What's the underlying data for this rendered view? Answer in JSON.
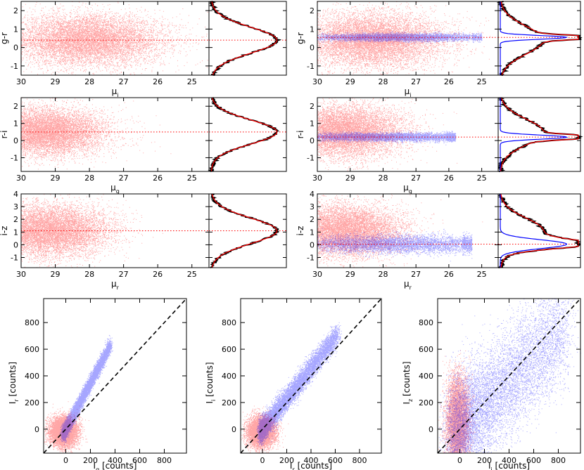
{
  "colors": {
    "field": "#ff0000",
    "cluster": "#0000ff",
    "frame": "#000000",
    "reference": "#000000"
  },
  "figure": {
    "type": "multi-panel scatter plots with histograms",
    "rows": [
      {
        "ylabel": "g-r",
        "yticks": [
          "-1",
          "0",
          "1",
          "2"
        ],
        "xlabel_base": "μ",
        "xlabel_sub": "i",
        "xticks": [
          "30",
          "29",
          "28",
          "27",
          "26",
          "25"
        ]
      },
      {
        "ylabel": "r-i",
        "yticks": [
          "-1",
          "0",
          "1",
          "2"
        ],
        "xlabel_base": "μ",
        "xlabel_sub": "g",
        "xticks": [
          "30",
          "29",
          "28",
          "27",
          "26",
          "25"
        ]
      },
      {
        "ylabel": "i-z",
        "yticks": [
          "-1",
          "0",
          "1",
          "2",
          "3",
          "4"
        ],
        "xlabel_base": "μ",
        "xlabel_sub": "r",
        "xticks": [
          "30",
          "29",
          "28",
          "27",
          "26",
          "25"
        ]
      }
    ],
    "bottom": [
      {
        "xlabel_base": "I",
        "xlabel_sub": "g",
        "xlabel_unit": " [counts]",
        "ylabel_base": "I",
        "ylabel_sub": "r",
        "ylabel_unit": " [counts]"
      },
      {
        "xlabel_base": "I",
        "xlabel_sub": "r",
        "xlabel_unit": " [counts]",
        "ylabel_base": "I",
        "ylabel_sub": "i",
        "ylabel_unit": " [counts]"
      },
      {
        "xlabel_base": "I",
        "xlabel_sub": "i",
        "xlabel_unit": " [counts]",
        "ylabel_base": "I",
        "ylabel_sub": "z",
        "ylabel_unit": " [counts]"
      }
    ],
    "bottom_xticks": [
      "0",
      "200",
      "400",
      "600",
      "800"
    ],
    "bottom_yticks": [
      "0",
      "200",
      "400",
      "600",
      "800"
    ]
  },
  "chart_data": [
    {
      "type": "scatter",
      "panel": "g-r vs μi (field)",
      "xlim": [
        30,
        24.5
      ],
      "ylim": [
        -1.5,
        2.5
      ],
      "reference_y": 0.4,
      "series": [
        {
          "color": "#ff0000",
          "center": [
            28.1,
            0.4
          ],
          "spread": [
            1.1,
            0.7
          ]
        }
      ]
    },
    {
      "type": "scatter",
      "panel": "g-r vs μi (field + cluster)",
      "xlim": [
        30,
        24.5
      ],
      "ylim": [
        -1.5,
        2.5
      ],
      "reference_y": 0.55,
      "series": [
        {
          "color": "#ff0000",
          "center": [
            28.3,
            0.4
          ],
          "spread": [
            1.1,
            0.75
          ]
        },
        {
          "color": "#0000ff",
          "center": [
            27.5,
            0.55
          ],
          "spread": [
            1.3,
            0.1
          ],
          "x_max": 25.0
        }
      ]
    },
    {
      "type": "scatter",
      "panel": "r-i vs μg (field)",
      "xlim": [
        30,
        24.5
      ],
      "ylim": [
        -1.8,
        2.5
      ],
      "reference_y": 0.5,
      "series": [
        {
          "color": "#ff0000",
          "center": [
            29.3,
            0.5
          ],
          "spread": [
            0.9,
            0.7
          ]
        }
      ]
    },
    {
      "type": "scatter",
      "panel": "r-i vs μg (field + cluster)",
      "xlim": [
        30,
        24.5
      ],
      "ylim": [
        -1.8,
        2.5
      ],
      "reference_y": 0.2,
      "series": [
        {
          "color": "#ff0000",
          "center": [
            29.2,
            0.5
          ],
          "spread": [
            0.9,
            0.75
          ]
        },
        {
          "color": "#0000ff",
          "center": [
            27.8,
            0.2
          ],
          "spread": [
            1.5,
            0.12
          ],
          "x_max": 25.8
        }
      ]
    },
    {
      "type": "scatter",
      "panel": "i-z vs μr (field)",
      "xlim": [
        30,
        24.5
      ],
      "ylim": [
        -1.8,
        4
      ],
      "reference_y": 1.1,
      "series": [
        {
          "color": "#ff0000",
          "center": [
            29.2,
            1.1
          ],
          "spread": [
            0.9,
            1.0
          ]
        }
      ]
    },
    {
      "type": "scatter",
      "panel": "i-z vs μr (field + cluster)",
      "xlim": [
        30,
        24.5
      ],
      "ylim": [
        -1.8,
        4
      ],
      "reference_y": 0.05,
      "series": [
        {
          "color": "#ff0000",
          "center": [
            29.2,
            1.1
          ],
          "spread": [
            0.9,
            1.0
          ]
        },
        {
          "color": "#0000ff",
          "center": [
            27.6,
            0.05
          ],
          "spread": [
            1.6,
            0.35
          ],
          "x_max": 25.3
        }
      ]
    },
    {
      "type": "scatter",
      "panel": "Ir vs Ig",
      "xlim": [
        -180,
        980
      ],
      "ylim": [
        -180,
        980
      ],
      "reference_line": [
        [
          -180,
          -180
        ],
        [
          980,
          980
        ]
      ],
      "series": [
        {
          "color": "#ff0000",
          "center": [
            -20,
            -20
          ],
          "spread": [
            55,
            55
          ]
        },
        {
          "color": "#0000ff",
          "trend": {
            "slope": 1.75,
            "x_range": [
              -20,
              360
            ],
            "scatter": 25
          }
        }
      ]
    },
    {
      "type": "scatter",
      "panel": "Ii vs Ir",
      "xlim": [
        -180,
        980
      ],
      "ylim": [
        -180,
        980
      ],
      "reference_line": [
        [
          -180,
          -180
        ],
        [
          980,
          980
        ]
      ],
      "series": [
        {
          "color": "#ff0000",
          "center": [
            -10,
            -20
          ],
          "spread": [
            55,
            55
          ]
        },
        {
          "color": "#0000ff",
          "trend": {
            "slope": 1.15,
            "x_range": [
              -20,
              620
            ],
            "scatter": 30
          }
        }
      ]
    },
    {
      "type": "scatter",
      "panel": "Iz vs Ii",
      "xlim": [
        -180,
        980
      ],
      "ylim": [
        -180,
        980
      ],
      "reference_line": [
        [
          -180,
          -180
        ],
        [
          980,
          980
        ]
      ],
      "series": [
        {
          "color": "#ff0000",
          "center": [
            -20,
            60
          ],
          "spread": [
            45,
            170
          ]
        },
        {
          "color": "#0000ff",
          "trend": {
            "slope": 0.9,
            "x_range": [
              -40,
              850
            ],
            "scatter": 140
          }
        }
      ]
    }
  ]
}
